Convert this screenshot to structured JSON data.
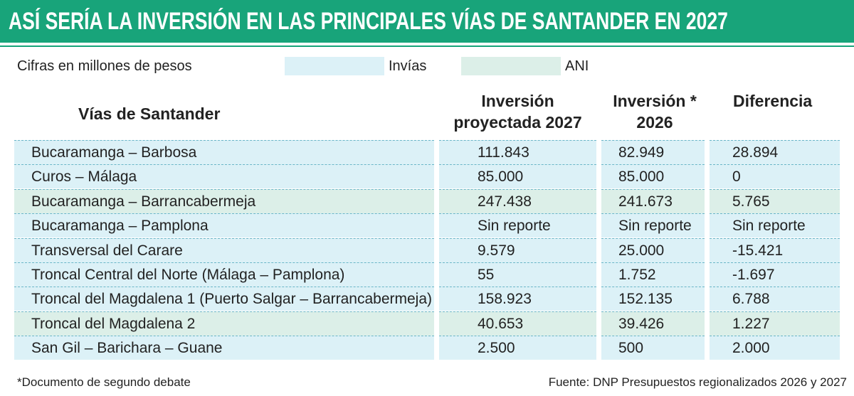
{
  "header": {
    "title": "ASÍ SERÍA LA INVERSIÓN EN LAS PRINCIPALES VÍAS DE SANTANDER EN 2027",
    "subtitle": "Cifras en millones de pesos"
  },
  "legend": [
    {
      "label": "Invías",
      "color": "#dcf1f7"
    },
    {
      "label": "ANI",
      "color": "#dcefe8"
    }
  ],
  "table": {
    "columns": [
      "Vías de Santander",
      "Inversión proyectada 2027",
      "Inversión * 2026",
      "Diferencia"
    ],
    "rows": [
      {
        "cells": [
          "Bucaramanga – Barbosa",
          "111.843",
          "82.949",
          "28.894"
        ],
        "color": "#dcf1f7"
      },
      {
        "cells": [
          "Curos – Málaga",
          "85.000",
          "85.000",
          "0"
        ],
        "color": "#dcf1f7"
      },
      {
        "cells": [
          "Bucaramanga – Barrancabermeja",
          "247.438",
          "241.673",
          "5.765"
        ],
        "color": "#dcefe8"
      },
      {
        "cells": [
          "Bucaramanga – Pamplona",
          "Sin reporte",
          "Sin reporte",
          "Sin reporte"
        ],
        "color": "#dcf1f7"
      },
      {
        "cells": [
          "Transversal del Carare",
          "9.579",
          "25.000",
          "-15.421"
        ],
        "color": "#dcf1f7"
      },
      {
        "cells": [
          "Troncal Central del Norte (Málaga – Pamplona)",
          "55",
          "1.752",
          "-1.697"
        ],
        "color": "#dcf1f7"
      },
      {
        "cells": [
          "Troncal del Magdalena 1 (Puerto Salgar – Barrancabermeja)",
          "158.923",
          "152.135",
          "6.788"
        ],
        "color": "#dcf1f7"
      },
      {
        "cells": [
          "Troncal del Magdalena 2",
          "40.653",
          "39.426",
          "1.227"
        ],
        "color": "#dcefe8"
      },
      {
        "cells": [
          "San Gil – Barichara – Guane",
          "2.500",
          "500",
          "2.000"
        ],
        "color": "#dcf1f7"
      }
    ]
  },
  "footer": {
    "note": "*Documento de segundo debate",
    "source": "Fuente: DNP Presupuestos regionalizados 2026 y 2027"
  }
}
